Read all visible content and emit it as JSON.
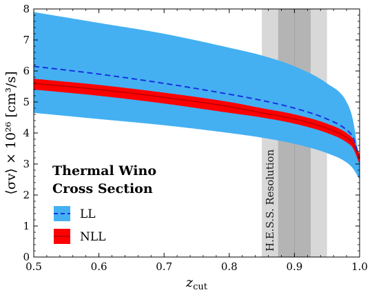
{
  "chart_data": {
    "type": "area",
    "x_label_base": "z",
    "x_label_sub": "cut",
    "y_label": "⟨σv⟩ × 10²⁶ [cm³/s]",
    "xlim": [
      0.5,
      1.0
    ],
    "ylim": [
      0,
      8
    ],
    "x_ticks": [
      0.5,
      0.6,
      0.7,
      0.8,
      0.9,
      1.0
    ],
    "x_tick_labels": [
      "0.5",
      "0.6",
      "0.7",
      "0.8",
      "0.9",
      "1.0"
    ],
    "y_ticks": [
      0,
      1,
      2,
      3,
      4,
      5,
      6,
      7,
      8
    ],
    "y_tick_labels": [
      "0",
      "1",
      "2",
      "3",
      "4",
      "5",
      "6",
      "7",
      "8"
    ],
    "legend": {
      "placement": "bottom-left",
      "title_lines": [
        "Thermal Wino",
        "Cross Section"
      ],
      "entries": [
        "LL",
        "NLL"
      ]
    },
    "resolution_band": {
      "label": "H.E.S.S. Resolution",
      "outer": [
        0.85,
        0.95
      ],
      "inner": [
        0.875,
        0.925
      ],
      "core": [
        0.9,
        0.9
      ]
    },
    "series": [
      {
        "name": "LL",
        "kind": "band_with_central_dashed",
        "color": "#44b0f2",
        "line_color": "#1a2fe0",
        "x": [
          0.5,
          0.6,
          0.7,
          0.8,
          0.85,
          0.9,
          0.95,
          0.98,
          0.99,
          1.0
        ],
        "upper": [
          7.9,
          7.55,
          7.2,
          6.75,
          6.5,
          6.15,
          5.6,
          5.0,
          4.4,
          3.0
        ],
        "center": [
          6.15,
          5.9,
          5.6,
          5.25,
          5.05,
          4.8,
          4.45,
          4.1,
          3.85,
          3.2
        ],
        "lower": [
          4.65,
          4.45,
          4.25,
          4.0,
          3.85,
          3.65,
          3.35,
          3.05,
          2.85,
          2.5
        ]
      },
      {
        "name": "NLL",
        "kind": "band_with_central_solid",
        "color": "#ff0000",
        "line_color": "#b00000",
        "x": [
          0.5,
          0.6,
          0.7,
          0.8,
          0.85,
          0.9,
          0.95,
          0.98,
          0.99,
          1.0
        ],
        "upper": [
          5.75,
          5.55,
          5.3,
          5.0,
          4.8,
          4.6,
          4.3,
          4.0,
          3.8,
          3.3
        ],
        "center": [
          5.6,
          5.4,
          5.15,
          4.85,
          4.65,
          4.45,
          4.15,
          3.85,
          3.65,
          3.15
        ],
        "lower": [
          5.4,
          5.2,
          4.95,
          4.65,
          4.5,
          4.3,
          4.0,
          3.7,
          3.5,
          3.0
        ]
      }
    ]
  }
}
